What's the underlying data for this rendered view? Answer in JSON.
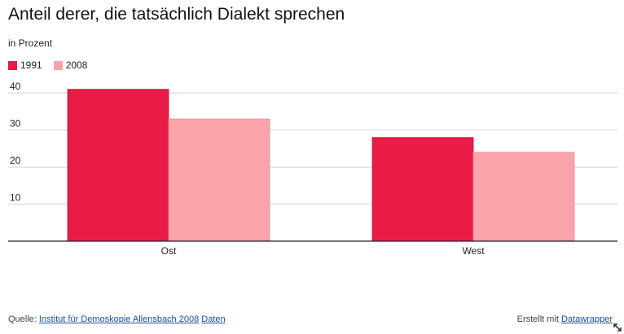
{
  "chart_data": {
    "type": "bar",
    "title": "Anteil derer, die tatsächlich Dialekt sprechen",
    "subtitle": "in Prozent",
    "categories": [
      "Ost",
      "West"
    ],
    "series": [
      {
        "name": "1991",
        "values": [
          41,
          28
        ],
        "color": "#e81c44"
      },
      {
        "name": "2008",
        "values": [
          33,
          24
        ],
        "color": "#fba3ab"
      }
    ],
    "yticks": [
      10,
      20,
      30,
      40
    ],
    "ylim": [
      0,
      44
    ],
    "grid": true,
    "legend_position": "top-left"
  },
  "footer": {
    "source_label": "Quelle:",
    "source_link": "Institut für Demoskopie Allensbach 2008",
    "data_link": "Daten",
    "credit_label": "Erstellt mit",
    "credit_link": "Datawrapper"
  }
}
